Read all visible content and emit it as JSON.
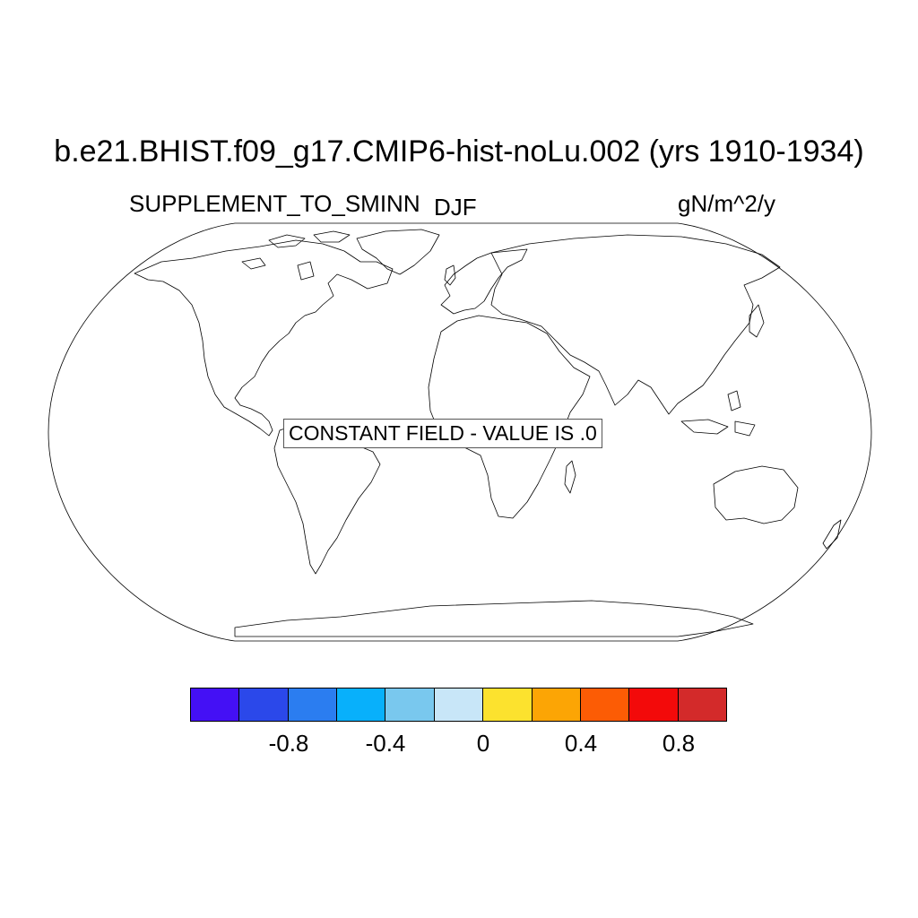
{
  "title": "b.e21.BHIST.f09_g17.CMIP6-hist-noLu.002 (yrs 1910-1934)",
  "variable": "SUPPLEMENT_TO_SMINN",
  "season": "DJF",
  "units": "gN/m^2/y",
  "notice": "CONSTANT FIELD - VALUE IS .0",
  "colorbar": {
    "colors": [
      "#4410f5",
      "#2b48ea",
      "#2b7df0",
      "#08b0fb",
      "#79c8ee",
      "#c8e6f8",
      "#fce22e",
      "#fca505",
      "#fc5c05",
      "#f30a0a",
      "#d32a2a"
    ],
    "tick_labels": [
      "-0.8",
      "-0.4",
      "0",
      "0.4",
      "0.8"
    ]
  }
}
